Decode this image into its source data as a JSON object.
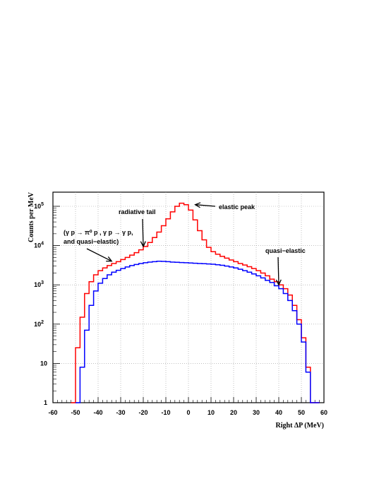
{
  "chart_data": {
    "type": "line",
    "step": true,
    "xlabel": "Right ΔP (MeV)",
    "ylabel": "Counts per MeV",
    "xlim": [
      -60,
      60
    ],
    "ylim": [
      1,
      250000
    ],
    "yscale": "log",
    "grid": true,
    "x_ticks": [
      "-60",
      "-50",
      "-40",
      "-30",
      "-20",
      "-10",
      "0",
      "10",
      "20",
      "30",
      "40",
      "50",
      "60"
    ],
    "y_ticks": [
      {
        "value": 1,
        "base": "1",
        "exp": ""
      },
      {
        "value": 10,
        "base": "10",
        "exp": ""
      },
      {
        "value": 100,
        "base": "10",
        "exp": "2"
      },
      {
        "value": 1000,
        "base": "10",
        "exp": "3"
      },
      {
        "value": 10000,
        "base": "10",
        "exp": "4"
      },
      {
        "value": 100000,
        "base": "10",
        "exp": "5"
      }
    ],
    "series": [
      {
        "color": "#ff0000",
        "x": [
          -52,
          -50,
          -48,
          -46,
          -44,
          -42,
          -40,
          -38,
          -36,
          -34,
          -32,
          -30,
          -28,
          -26,
          -24,
          -22,
          -20,
          -18,
          -16,
          -14,
          -12,
          -10,
          -8,
          -6,
          -4,
          -2,
          0,
          2,
          4,
          6,
          8,
          10,
          12,
          14,
          16,
          18,
          20,
          22,
          24,
          26,
          28,
          30,
          32,
          34,
          36,
          38,
          40,
          42,
          44,
          46,
          48,
          50,
          52,
          54,
          56
        ],
        "y": [
          1,
          25,
          150,
          600,
          1200,
          1800,
          2300,
          2700,
          3100,
          3500,
          3900,
          4400,
          5000,
          5700,
          6600,
          7800,
          9500,
          12000,
          16000,
          22000,
          32000,
          48000,
          72000,
          100000,
          120000,
          110000,
          80000,
          45000,
          24000,
          14000,
          9000,
          7000,
          6000,
          5300,
          4800,
          4300,
          3900,
          3500,
          3200,
          2900,
          2600,
          2300,
          2000,
          1700,
          1400,
          1200,
          1000,
          800,
          550,
          300,
          130,
          45,
          8,
          1,
          1
        ]
      },
      {
        "color": "#0000ff",
        "x": [
          -50,
          -48,
          -46,
          -44,
          -42,
          -40,
          -38,
          -36,
          -34,
          -32,
          -30,
          -28,
          -26,
          -24,
          -22,
          -20,
          -18,
          -16,
          -14,
          -12,
          -10,
          -8,
          -6,
          -4,
          -2,
          0,
          2,
          4,
          6,
          8,
          10,
          12,
          14,
          16,
          18,
          20,
          22,
          24,
          26,
          28,
          30,
          32,
          34,
          36,
          38,
          40,
          42,
          44,
          46,
          48,
          50,
          52,
          54,
          56
        ],
        "y": [
          1,
          8,
          70,
          300,
          700,
          1100,
          1450,
          1800,
          2100,
          2350,
          2600,
          2850,
          3100,
          3300,
          3500,
          3650,
          3800,
          3900,
          4000,
          3950,
          3900,
          3800,
          3750,
          3700,
          3650,
          3600,
          3550,
          3500,
          3450,
          3400,
          3350,
          3250,
          3150,
          3000,
          2850,
          2700,
          2500,
          2300,
          2100,
          1900,
          1700,
          1500,
          1300,
          1150,
          950,
          800,
          600,
          400,
          220,
          100,
          35,
          6,
          1,
          1
        ]
      }
    ],
    "annotations": [
      {
        "id": "elastic-peak",
        "lines": [
          "elastic peak"
        ],
        "arrow_to": [
          3,
          110000
        ]
      },
      {
        "id": "radiative-tail",
        "lines": [
          "radiative tail"
        ],
        "arrow_to": [
          -20,
          9500
        ]
      },
      {
        "id": "quasi-elastic",
        "lines": [
          "quasi−elastic"
        ],
        "arrow_to": [
          40,
          1000
        ]
      },
      {
        "id": "background-processes",
        "lines": [
          "(γ p → π⁰ p , γ p → γ p,",
          "and quasi−elastic)"
        ],
        "arrow_to": [
          -34,
          4000
        ]
      }
    ]
  }
}
